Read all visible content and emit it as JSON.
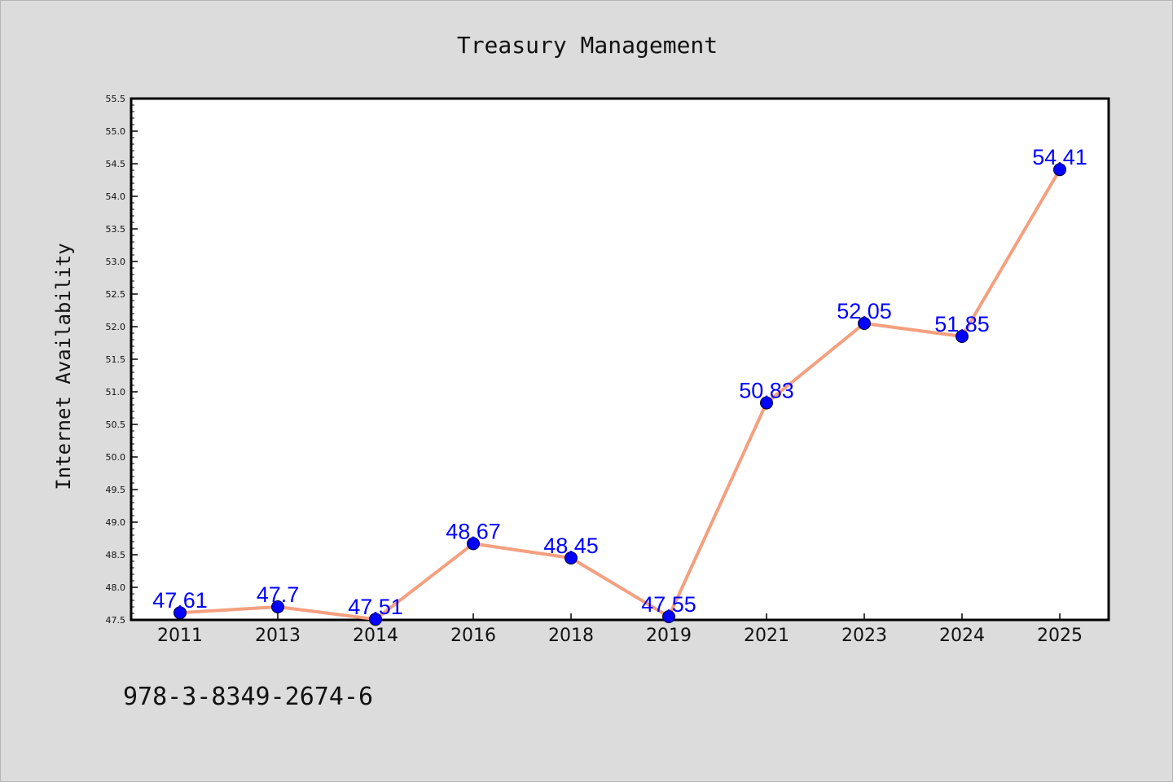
{
  "chart_data": {
    "type": "line",
    "title": "Treasury Management",
    "xlabel": "",
    "ylabel": "Internet Availability",
    "categories": [
      "2011",
      "2013",
      "2014",
      "2016",
      "2018",
      "2019",
      "2021",
      "2023",
      "2024",
      "2025"
    ],
    "values": [
      47.61,
      47.7,
      47.51,
      48.67,
      48.45,
      47.55,
      50.83,
      52.05,
      51.85,
      54.41
    ],
    "data_labels": [
      "47.61",
      "47.7",
      "47.51",
      "48.67",
      "48.45",
      "47.55",
      "50.83",
      "52.05",
      "51.85",
      "54.41"
    ],
    "ylim": [
      47.5,
      55.5
    ],
    "yticks": [
      "47.5",
      "48.0",
      "48.5",
      "49.0",
      "49.5",
      "50.0",
      "50.5",
      "51.0",
      "51.5",
      "52.0",
      "52.5",
      "53.0",
      "53.5",
      "54.0",
      "54.5",
      "55.0",
      "55.5"
    ],
    "grid": false,
    "legend": "none",
    "line_color": "#f4a07f",
    "marker_color": "#0000ff",
    "label_color": "#0000ff"
  },
  "annotation": "978-3-8349-2674-6"
}
